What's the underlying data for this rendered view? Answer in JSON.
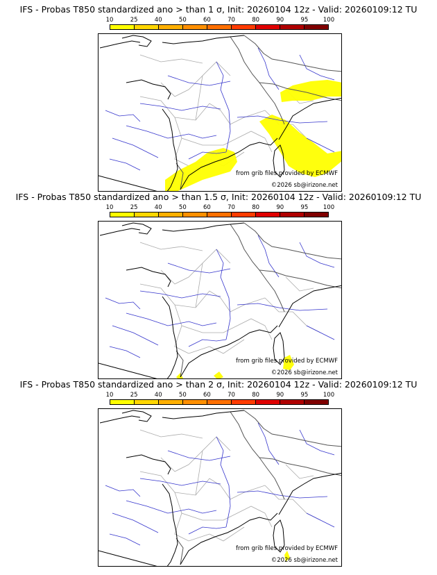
{
  "legend": {
    "labels": [
      "10",
      "25",
      "40",
      "50",
      "60",
      "70",
      "80",
      "90",
      "95",
      "100"
    ],
    "colors": [
      "#ffff00",
      "#ffd700",
      "#ffb000",
      "#ff9000",
      "#ff7000",
      "#ff3c00",
      "#e00000",
      "#b00000",
      "#800000"
    ]
  },
  "credits": {
    "source": "from grib files provided by ECMWF",
    "copyright": "©2026 sb@irizone.net"
  },
  "panels": [
    {
      "title": "IFS - Probas T850  standardized ano > than 1 σ, Init: 20260104 12z - Valid: 20260109:12 TU",
      "level": "1"
    },
    {
      "title": "IFS - Probas T850  standardized ano > than 1.5 σ, Init: 20260104 12z - Valid: 20260109:12 TU",
      "level": "1.5"
    },
    {
      "title": "IFS - Probas T850  standardized ano > than 2 σ, Init: 20260104 12z - Valid: 20260109:12 TU",
      "level": "2"
    }
  ],
  "fill_color": "#ffff00",
  "fill_color_light": "#ffe600"
}
